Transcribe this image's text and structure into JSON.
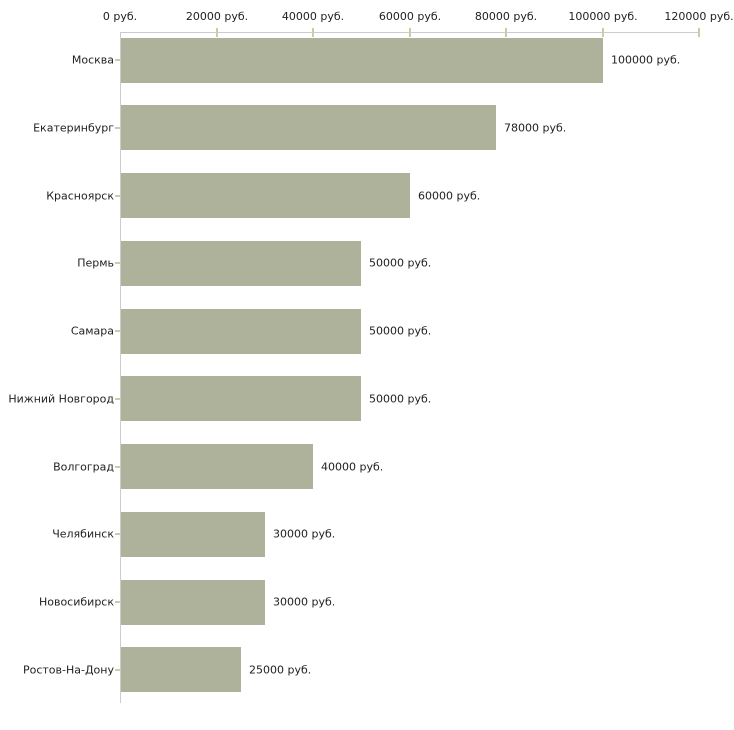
{
  "chart_data": {
    "type": "bar",
    "orientation": "horizontal",
    "title": "",
    "xlabel": "",
    "ylabel": "",
    "unit": "руб.",
    "xlim": [
      0,
      120000
    ],
    "grid": false,
    "legend": false,
    "categories": [
      "Москва",
      "Екатеринбург",
      "Красноярск",
      "Пермь",
      "Самара",
      "Нижний Новгород",
      "Волгоград",
      "Челябинск",
      "Новосибирск",
      "Ростов-На-Дону"
    ],
    "values": [
      100000,
      78000,
      60000,
      50000,
      50000,
      50000,
      40000,
      30000,
      30000,
      25000
    ],
    "value_labels": [
      "100000 руб.",
      "78000 руб.",
      "60000 руб.",
      "50000 руб.",
      "50000 руб.",
      "50000 руб.",
      "40000 руб.",
      "30000 руб.",
      "30000 руб.",
      "25000 руб."
    ],
    "x_ticks": [
      {
        "value": 0,
        "label": "0 руб."
      },
      {
        "value": 20000,
        "label": "20000 руб."
      },
      {
        "value": 40000,
        "label": "40000 руб."
      },
      {
        "value": 60000,
        "label": "60000 руб."
      },
      {
        "value": 80000,
        "label": "80000 руб."
      },
      {
        "value": 100000,
        "label": "100000 руб."
      },
      {
        "value": 120000,
        "label": "120000 руб."
      }
    ],
    "colors": {
      "bar": "#aeb29a",
      "axis": "#cccccc",
      "x_tick": "#cdcda4",
      "y_tick": "#ccccaa",
      "text": "#222222",
      "background": "#ffffff"
    }
  }
}
